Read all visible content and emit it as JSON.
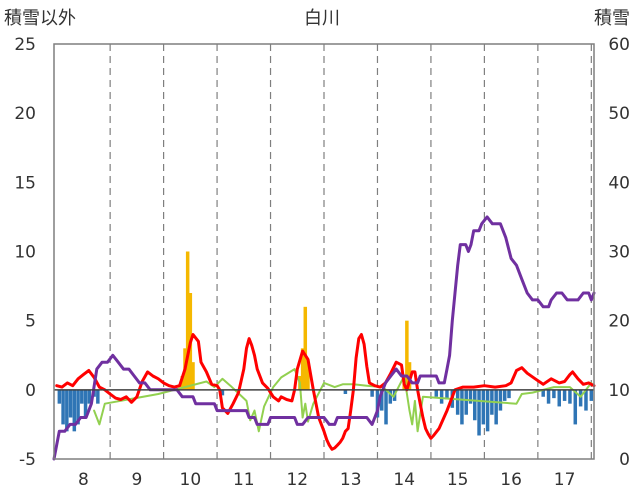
{
  "chart_data": {
    "type": "bar",
    "title": "白川",
    "left_axis_label": "積雪以外",
    "right_axis_label": "積雪",
    "categories": [
      "8",
      "9",
      "10",
      "11",
      "12",
      "13",
      "14",
      "15",
      "16",
      "17"
    ],
    "x_range": [
      7.45,
      17.55
    ],
    "ylim_left": [
      -5,
      25
    ],
    "ylim_right": [
      0,
      60
    ],
    "left_ticks": [
      "-5",
      "0",
      "5",
      "10",
      "15",
      "20",
      "25"
    ],
    "right_ticks": [
      "0",
      "10",
      "20",
      "30",
      "40",
      "50",
      "60"
    ],
    "grid": {
      "vertical_dashed": true,
      "horizontal": false
    },
    "series": [
      {
        "kind": "bar",
        "axis": "left",
        "color": "#f5b800",
        "points": [
          [
            9.85,
            1
          ],
          [
            9.9,
            3
          ],
          [
            9.95,
            10
          ],
          [
            10.0,
            7
          ],
          [
            10.05,
            2
          ],
          [
            12.05,
            1
          ],
          [
            12.1,
            3
          ],
          [
            12.15,
            6
          ],
          [
            12.2,
            2
          ],
          [
            14.0,
            1
          ],
          [
            14.05,
            5
          ],
          [
            14.1,
            2
          ]
        ]
      },
      {
        "kind": "bar",
        "axis": "left",
        "color": "#2f75b5",
        "points": [
          [
            7.55,
            -1
          ],
          [
            7.62,
            -2.5
          ],
          [
            7.69,
            -3
          ],
          [
            7.76,
            -2
          ],
          [
            7.83,
            -3
          ],
          [
            7.9,
            -2.5
          ],
          [
            7.97,
            -1
          ],
          [
            8.04,
            -2
          ],
          [
            8.11,
            -1
          ],
          [
            8.2,
            -0.5
          ],
          [
            8.27,
            -1
          ],
          [
            10.6,
            -0.4
          ],
          [
            12.9,
            -0.3
          ],
          [
            13.4,
            -0.5
          ],
          [
            13.5,
            -2
          ],
          [
            13.58,
            -1.5
          ],
          [
            13.66,
            -2.5
          ],
          [
            13.74,
            -1
          ],
          [
            13.82,
            -0.8
          ],
          [
            14.6,
            -0.5
          ],
          [
            14.7,
            -1
          ],
          [
            14.8,
            -0.7
          ],
          [
            14.9,
            -1.3
          ],
          [
            15.0,
            -1.8
          ],
          [
            15.08,
            -2.5
          ],
          [
            15.16,
            -1.8
          ],
          [
            15.24,
            -1
          ],
          [
            15.32,
            -2.2
          ],
          [
            15.4,
            -3.3
          ],
          [
            15.48,
            -2.5
          ],
          [
            15.56,
            -3
          ],
          [
            15.64,
            -1.8
          ],
          [
            15.72,
            -2.5
          ],
          [
            15.8,
            -1.5
          ],
          [
            15.88,
            -0.8
          ],
          [
            15.96,
            -0.6
          ],
          [
            16.6,
            -0.5
          ],
          [
            16.7,
            -1
          ],
          [
            16.8,
            -0.6
          ],
          [
            16.9,
            -1.2
          ],
          [
            17.0,
            -0.8
          ],
          [
            17.1,
            -1
          ],
          [
            17.2,
            -2.5
          ],
          [
            17.3,
            -1.2
          ],
          [
            17.4,
            -1.5
          ],
          [
            17.5,
            -0.8
          ]
        ]
      },
      {
        "kind": "line",
        "axis": "left",
        "color": "#92d050",
        "width": 2,
        "points": [
          [
            8.2,
            -1.5
          ],
          [
            8.3,
            -2.5
          ],
          [
            8.4,
            -1
          ],
          [
            9.4,
            -0.3
          ],
          [
            10.3,
            0.6
          ],
          [
            10.45,
            0.2
          ],
          [
            10.6,
            0.8
          ],
          [
            10.75,
            0.3
          ],
          [
            11.05,
            -0.8
          ],
          [
            11.12,
            -2.2
          ],
          [
            11.2,
            -1.5
          ],
          [
            11.28,
            -3
          ],
          [
            11.38,
            -1.2
          ],
          [
            11.55,
            0.2
          ],
          [
            11.7,
            0.9
          ],
          [
            11.95,
            1.5
          ],
          [
            12.05,
            0.5
          ],
          [
            12.1,
            -2
          ],
          [
            12.15,
            -1
          ],
          [
            12.2,
            -2.3
          ],
          [
            12.3,
            -1
          ],
          [
            12.5,
            0.5
          ],
          [
            12.7,
            0.2
          ],
          [
            12.85,
            0.4
          ],
          [
            13.05,
            0.4
          ],
          [
            13.3,
            0.3
          ],
          [
            13.6,
            0.2
          ],
          [
            13.8,
            -0.5
          ],
          [
            14.0,
            1
          ],
          [
            14.1,
            -1.5
          ],
          [
            14.15,
            -2.5
          ],
          [
            14.2,
            -0.8
          ],
          [
            14.25,
            -3
          ],
          [
            14.35,
            -0.5
          ],
          [
            16.1,
            -1
          ],
          [
            16.2,
            -0.3
          ],
          [
            16.4,
            -0.2
          ],
          [
            16.8,
            0.2
          ],
          [
            17.1,
            0.2
          ],
          [
            17.3,
            -0.5
          ],
          [
            17.5,
            0.5
          ]
        ]
      },
      {
        "kind": "line",
        "axis": "left",
        "color": "#ff0000",
        "width": 3,
        "points": [
          [
            7.5,
            0.3
          ],
          [
            7.6,
            0.2
          ],
          [
            7.7,
            0.5
          ],
          [
            7.8,
            0.3
          ],
          [
            7.9,
            0.8
          ],
          [
            8.0,
            1.1
          ],
          [
            8.1,
            1.4
          ],
          [
            8.2,
            0.9
          ],
          [
            8.3,
            0.2
          ],
          [
            8.4,
            0
          ],
          [
            8.5,
            -0.3
          ],
          [
            8.6,
            -0.6
          ],
          [
            8.7,
            -0.7
          ],
          [
            8.8,
            -0.5
          ],
          [
            8.9,
            -0.9
          ],
          [
            9.0,
            -0.5
          ],
          [
            9.1,
            0.6
          ],
          [
            9.2,
            1.3
          ],
          [
            9.3,
            1.0
          ],
          [
            9.4,
            0.8
          ],
          [
            9.5,
            0.5
          ],
          [
            9.6,
            0.3
          ],
          [
            9.7,
            0.2
          ],
          [
            9.8,
            0.3
          ],
          [
            9.9,
            1.5
          ],
          [
            10.0,
            3.4
          ],
          [
            10.05,
            4.0
          ],
          [
            10.15,
            3.5
          ],
          [
            10.2,
            2.0
          ],
          [
            10.3,
            1.3
          ],
          [
            10.4,
            0.4
          ],
          [
            10.5,
            0.3
          ],
          [
            10.55,
            0
          ],
          [
            10.6,
            -1.3
          ],
          [
            10.7,
            -1.7
          ],
          [
            10.8,
            -1.0
          ],
          [
            10.9,
            -0.2
          ],
          [
            11.0,
            1.5
          ],
          [
            11.05,
            3.0
          ],
          [
            11.1,
            3.7
          ],
          [
            11.15,
            3.2
          ],
          [
            11.2,
            2.5
          ],
          [
            11.25,
            1.5
          ],
          [
            11.35,
            0.5
          ],
          [
            11.45,
            0.1
          ],
          [
            11.55,
            -0.5
          ],
          [
            11.65,
            -0.8
          ],
          [
            11.7,
            -0.5
          ],
          [
            11.8,
            -0.7
          ],
          [
            11.9,
            -0.8
          ],
          [
            11.95,
            0
          ],
          [
            12.0,
            1.5
          ],
          [
            12.1,
            2.8
          ],
          [
            12.2,
            2.2
          ],
          [
            12.3,
            0
          ],
          [
            12.4,
            -2.0
          ],
          [
            12.5,
            -3.0
          ],
          [
            12.55,
            -3.6
          ],
          [
            12.6,
            -4.0
          ],
          [
            12.65,
            -4.3
          ],
          [
            12.7,
            -4.2
          ],
          [
            12.75,
            -4.0
          ],
          [
            12.8,
            -3.8
          ],
          [
            12.85,
            -3.5
          ],
          [
            12.9,
            -3.0
          ],
          [
            12.95,
            -2.8
          ],
          [
            13.0,
            -1.5
          ],
          [
            13.05,
            0
          ],
          [
            13.1,
            2.3
          ],
          [
            13.15,
            3.7
          ],
          [
            13.2,
            4.0
          ],
          [
            13.25,
            3.3
          ],
          [
            13.3,
            1.7
          ],
          [
            13.35,
            0.5
          ],
          [
            13.45,
            0.3
          ],
          [
            13.55,
            0.2
          ],
          [
            13.65,
            0.5
          ],
          [
            13.75,
            1.2
          ],
          [
            13.85,
            2.0
          ],
          [
            13.95,
            1.8
          ],
          [
            14.0,
            0.4
          ],
          [
            14.05,
            0
          ],
          [
            14.15,
            1.3
          ],
          [
            14.2,
            1.3
          ],
          [
            14.25,
            0
          ],
          [
            14.3,
            -1.0
          ],
          [
            14.35,
            -2.0
          ],
          [
            14.4,
            -2.8
          ],
          [
            14.45,
            -3.2
          ],
          [
            14.5,
            -3.5
          ],
          [
            14.55,
            -3.3
          ],
          [
            14.65,
            -2.8
          ],
          [
            14.8,
            -1.5
          ],
          [
            14.95,
            0
          ],
          [
            15.1,
            0.2
          ],
          [
            15.3,
            0.2
          ],
          [
            15.5,
            0.3
          ],
          [
            15.7,
            0.2
          ],
          [
            15.9,
            0.3
          ],
          [
            16.0,
            0.5
          ],
          [
            16.1,
            1.4
          ],
          [
            16.2,
            1.6
          ],
          [
            16.3,
            1.2
          ],
          [
            16.45,
            0.8
          ],
          [
            16.6,
            0.4
          ],
          [
            16.75,
            0.8
          ],
          [
            16.9,
            0.5
          ],
          [
            17.0,
            0.6
          ],
          [
            17.1,
            1.1
          ],
          [
            17.15,
            1.3
          ],
          [
            17.25,
            0.8
          ],
          [
            17.35,
            0.4
          ],
          [
            17.45,
            0.5
          ],
          [
            17.55,
            0.3
          ]
        ]
      },
      {
        "kind": "line",
        "axis": "right",
        "color": "#7030a0",
        "width": 3,
        "points": [
          [
            7.45,
            0
          ],
          [
            7.55,
            4
          ],
          [
            7.65,
            4
          ],
          [
            7.75,
            5
          ],
          [
            7.85,
            5
          ],
          [
            7.95,
            6
          ],
          [
            8.05,
            6
          ],
          [
            8.15,
            8
          ],
          [
            8.25,
            13
          ],
          [
            8.35,
            14
          ],
          [
            8.45,
            14
          ],
          [
            8.55,
            15
          ],
          [
            8.65,
            14
          ],
          [
            8.75,
            13
          ],
          [
            8.85,
            13
          ],
          [
            8.95,
            12
          ],
          [
            9.05,
            11
          ],
          [
            9.15,
            11
          ],
          [
            9.25,
            10
          ],
          [
            9.35,
            10
          ],
          [
            9.45,
            10
          ],
          [
            9.55,
            10
          ],
          [
            9.65,
            10
          ],
          [
            9.75,
            10
          ],
          [
            9.85,
            9
          ],
          [
            10.05,
            9
          ],
          [
            10.1,
            8
          ],
          [
            10.45,
            8
          ],
          [
            10.5,
            7
          ],
          [
            11.05,
            7
          ],
          [
            11.1,
            6
          ],
          [
            11.2,
            6
          ],
          [
            11.25,
            5
          ],
          [
            11.45,
            5
          ],
          [
            11.5,
            6
          ],
          [
            11.95,
            6
          ],
          [
            12.0,
            5
          ],
          [
            12.1,
            5
          ],
          [
            12.2,
            6
          ],
          [
            12.5,
            6
          ],
          [
            12.6,
            5
          ],
          [
            12.7,
            5
          ],
          [
            12.75,
            6
          ],
          [
            13.3,
            6
          ],
          [
            13.4,
            5
          ],
          [
            13.5,
            7
          ],
          [
            13.55,
            9
          ],
          [
            13.65,
            11
          ],
          [
            13.75,
            12
          ],
          [
            13.85,
            13
          ],
          [
            13.95,
            12
          ],
          [
            14.05,
            12
          ],
          [
            14.15,
            11
          ],
          [
            14.25,
            11
          ],
          [
            14.3,
            12
          ],
          [
            14.45,
            12
          ],
          [
            14.6,
            12
          ],
          [
            14.65,
            11
          ],
          [
            14.75,
            11
          ],
          [
            14.8,
            13
          ],
          [
            14.85,
            15
          ],
          [
            14.9,
            20
          ],
          [
            14.95,
            24
          ],
          [
            15.0,
            28
          ],
          [
            15.05,
            31
          ],
          [
            15.15,
            31
          ],
          [
            15.2,
            30
          ],
          [
            15.25,
            31
          ],
          [
            15.3,
            33
          ],
          [
            15.4,
            33
          ],
          [
            15.45,
            34
          ],
          [
            15.55,
            35
          ],
          [
            15.65,
            34
          ],
          [
            15.8,
            34
          ],
          [
            15.9,
            32
          ],
          [
            16.0,
            29
          ],
          [
            16.1,
            28
          ],
          [
            16.2,
            26
          ],
          [
            16.3,
            24
          ],
          [
            16.4,
            23
          ],
          [
            16.5,
            23
          ],
          [
            16.6,
            22
          ],
          [
            16.7,
            22
          ],
          [
            16.75,
            23
          ],
          [
            16.85,
            24
          ],
          [
            16.95,
            24
          ],
          [
            17.05,
            23
          ],
          [
            17.25,
            23
          ],
          [
            17.35,
            24
          ],
          [
            17.45,
            24
          ],
          [
            17.5,
            23
          ],
          [
            17.55,
            24
          ]
        ]
      }
    ]
  }
}
